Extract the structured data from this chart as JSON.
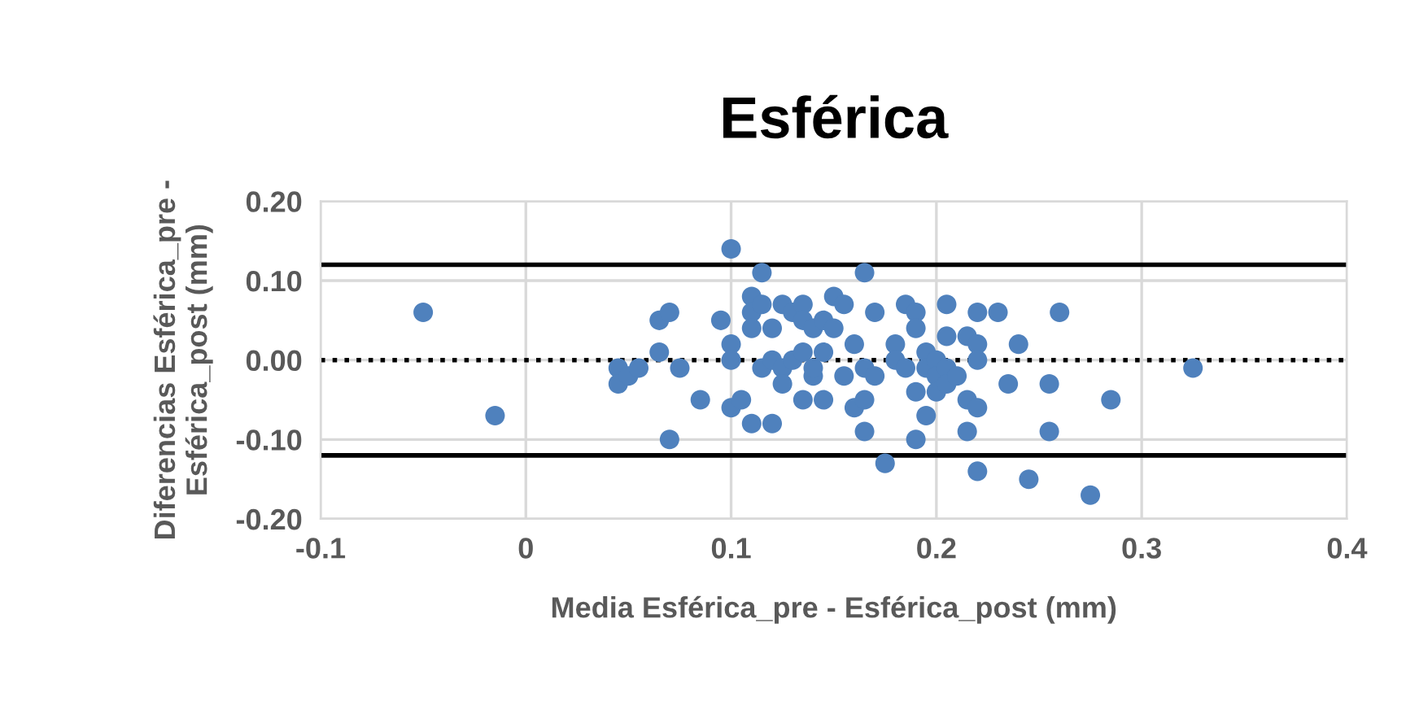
{
  "chart_data": {
    "type": "scatter",
    "title": "Esférica",
    "xlabel": "Media Esférica_pre - Esférica_post (mm)",
    "ylabel": "Diferencias Esférica_pre -\nEsférica_post (mm)",
    "series": [
      {
        "color": "#4f81bd",
        "x": [
          -0.05,
          -0.015,
          0.045,
          0.045,
          0.05,
          0.055,
          0.065,
          0.065,
          0.07,
          0.07,
          0.075,
          0.085,
          0.095,
          0.1,
          0.1,
          0.1,
          0.1,
          0.105,
          0.11,
          0.11,
          0.11,
          0.11,
          0.115,
          0.115,
          0.115,
          0.12,
          0.12,
          0.12,
          0.125,
          0.125,
          0.125,
          0.13,
          0.13,
          0.135,
          0.135,
          0.135,
          0.135,
          0.14,
          0.14,
          0.14,
          0.145,
          0.145,
          0.145,
          0.15,
          0.15,
          0.155,
          0.155,
          0.16,
          0.16,
          0.165,
          0.165,
          0.165,
          0.165,
          0.17,
          0.17,
          0.175,
          0.18,
          0.18,
          0.185,
          0.185,
          0.19,
          0.19,
          0.19,
          0.19,
          0.195,
          0.195,
          0.195,
          0.2,
          0.2,
          0.2,
          0.205,
          0.205,
          0.205,
          0.205,
          0.21,
          0.215,
          0.215,
          0.215,
          0.22,
          0.22,
          0.22,
          0.22,
          0.22,
          0.23,
          0.235,
          0.24,
          0.245,
          0.255,
          0.255,
          0.26,
          0.275,
          0.285,
          0.325
        ],
        "values": [
          0.06,
          -0.07,
          -0.01,
          -0.03,
          -0.02,
          -0.01,
          0.01,
          0.05,
          0.06,
          -0.1,
          -0.01,
          -0.05,
          0.05,
          0.14,
          0.02,
          0,
          -0.06,
          -0.05,
          0.08,
          0.06,
          0.04,
          -0.08,
          0.11,
          0.07,
          -0.01,
          0.04,
          0,
          -0.08,
          0.07,
          -0.01,
          -0.03,
          0.06,
          0,
          0.07,
          0.05,
          0.01,
          -0.05,
          0.04,
          -0.02,
          -0.01,
          0.05,
          0.01,
          -0.05,
          0.08,
          0.04,
          0.07,
          -0.02,
          0.02,
          -0.06,
          0.11,
          -0.01,
          -0.05,
          -0.09,
          0.06,
          -0.02,
          -0.13,
          0.02,
          0,
          0.07,
          -0.01,
          0.06,
          0.04,
          -0.04,
          -0.1,
          0.01,
          -0.01,
          -0.07,
          0,
          -0.02,
          -0.04,
          0.07,
          0.03,
          -0.01,
          -0.03,
          -0.02,
          0.03,
          -0.05,
          -0.09,
          0.06,
          0.02,
          0,
          -0.06,
          -0.14,
          0.06,
          -0.03,
          0.02,
          -0.15,
          -0.03,
          -0.09,
          0.06,
          -0.17,
          -0.05,
          -0.01
        ]
      }
    ],
    "marker": "circle",
    "xlim": [
      -0.1,
      0.4
    ],
    "xticks": [
      -0.1,
      0,
      0.1,
      0.2,
      0.3,
      0.4
    ],
    "ylim": [
      -0.2,
      0.2
    ],
    "yticks": [
      {
        "value": -0.2,
        "label": "-0.20"
      },
      {
        "value": -0.1,
        "label": "-0.10"
      },
      {
        "value": 0,
        "label": "0.00"
      },
      {
        "value": 0.1,
        "label": "0.10"
      },
      {
        "value": 0.2,
        "label": "0.20"
      }
    ],
    "ref_lines": [
      {
        "axis": "y",
        "value": 0.12,
        "color": "#000000",
        "line_style": "solid"
      },
      {
        "axis": "y",
        "value": 0,
        "color": "#000000",
        "line_style": "dotted"
      },
      {
        "axis": "y",
        "value": -0.12,
        "color": "#000000",
        "line_style": "solid"
      }
    ],
    "grid": true,
    "legend": false
  }
}
